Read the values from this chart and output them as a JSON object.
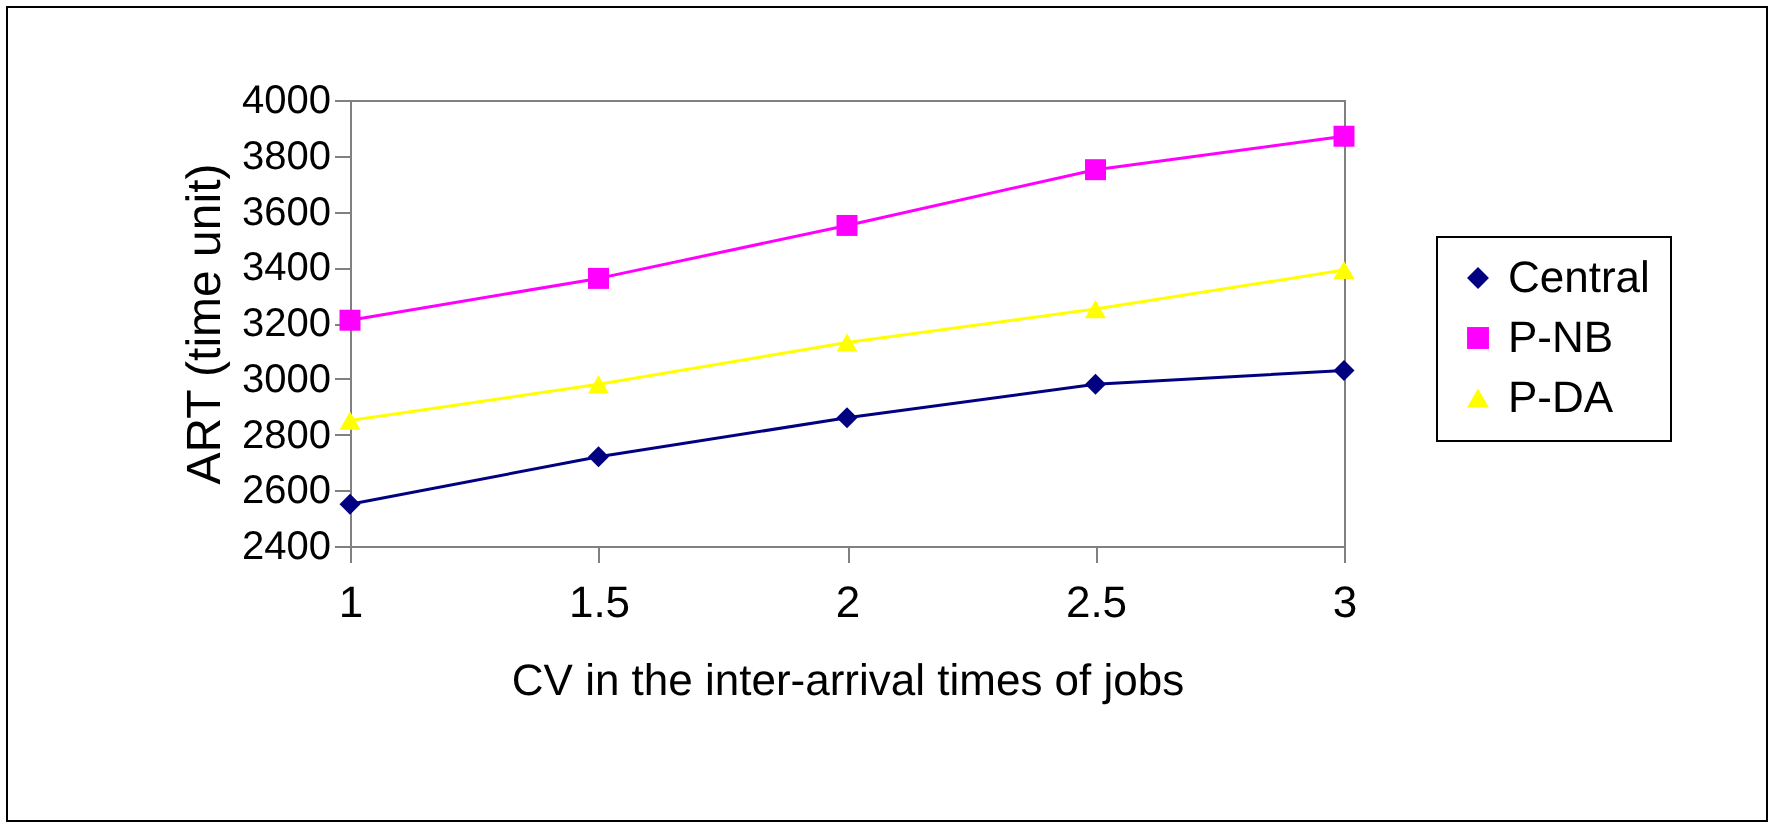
{
  "chart_data": {
    "type": "line",
    "xlabel": "CV in the inter-arrival times of jobs",
    "ylabel": "ART (time unit)",
    "x": [
      1,
      1.5,
      2,
      2.5,
      3
    ],
    "xlim": [
      1,
      3
    ],
    "xticks": [
      1,
      1.5,
      2,
      2.5,
      3
    ],
    "ylim": [
      2400,
      4000
    ],
    "yticks": [
      2400,
      2600,
      2800,
      3000,
      3200,
      3400,
      3600,
      3800,
      4000
    ],
    "grid": false,
    "legend": "right",
    "line_style": "solid",
    "series": [
      {
        "name": "Central",
        "color": "#000080",
        "marker": "diamond",
        "values": [
          2550,
          2720,
          2860,
          2980,
          3030
        ]
      },
      {
        "name": "P-NB",
        "color": "#ff00ff",
        "marker": "square",
        "values": [
          3210,
          3360,
          3550,
          3750,
          3870
        ]
      },
      {
        "name": "P-DA",
        "color": "#ffff00",
        "marker": "triangle",
        "values": [
          2850,
          2980,
          3130,
          3250,
          3390
        ]
      }
    ]
  }
}
